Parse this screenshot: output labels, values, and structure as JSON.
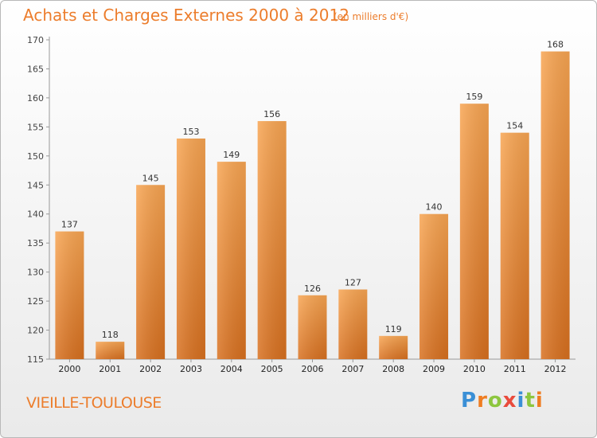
{
  "header": {
    "title": "Achats et Charges Externes 2000 à 2012",
    "subtitle": "(en milliers d'€)"
  },
  "footer": {
    "commune": "VIEILLE-TOULOUSE",
    "logo_letters": [
      "P",
      "r",
      "o",
      "x",
      "i",
      "t",
      "i"
    ],
    "logo_colors": [
      "#3a8fd6",
      "#ef7d22",
      "#8dc63f",
      "#e94b3c",
      "#3a8fd6",
      "#8dc63f",
      "#ef7d22"
    ]
  },
  "colors": {
    "bar_light": "#f8a552",
    "bar_dark": "#d8701f",
    "axis": "#999999",
    "text_accent": "#ec7d2c"
  },
  "chart_data": {
    "type": "bar",
    "title": "Achats et Charges Externes 2000 à 2012",
    "subtitle": "(en milliers d'€)",
    "categories": [
      "2000",
      "2001",
      "2002",
      "2003",
      "2004",
      "2005",
      "2006",
      "2007",
      "2008",
      "2009",
      "2010",
      "2011",
      "2012"
    ],
    "values": [
      137,
      118,
      145,
      153,
      149,
      156,
      126,
      127,
      119,
      140,
      159,
      154,
      168
    ],
    "ylim": [
      115,
      170
    ],
    "yticks": [
      115,
      120,
      125,
      130,
      135,
      140,
      145,
      150,
      155,
      160,
      165,
      170
    ],
    "xlabel": "",
    "ylabel": "",
    "grid": false,
    "legend": "none"
  }
}
